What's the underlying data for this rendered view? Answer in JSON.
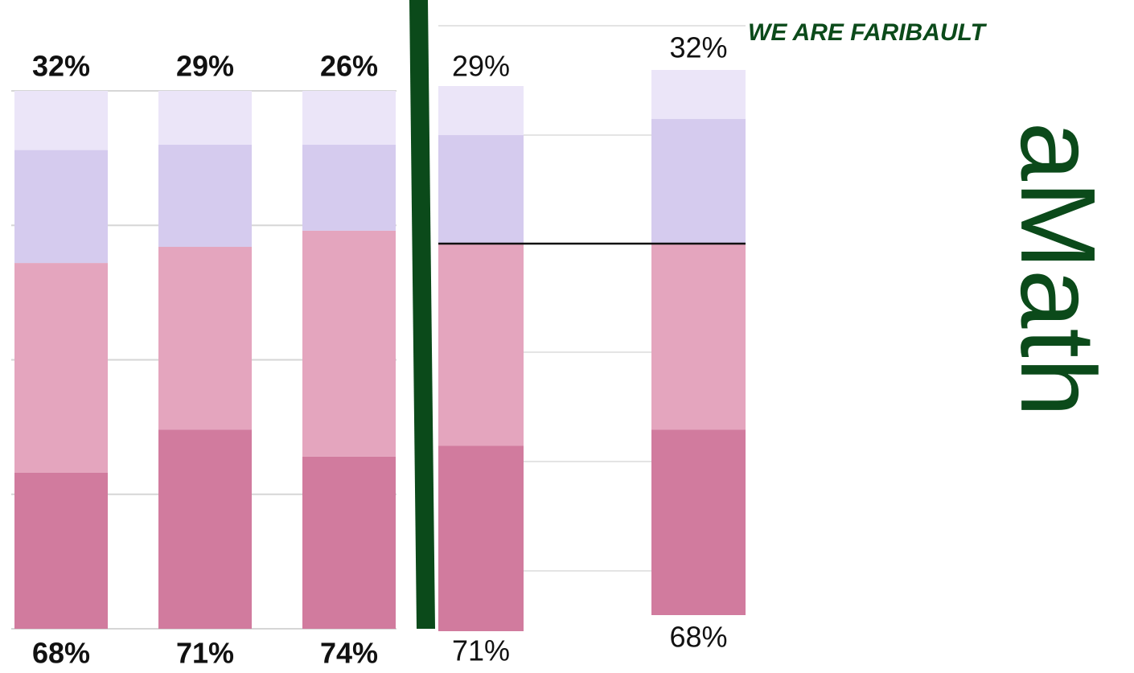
{
  "header": {
    "tagline": "WE ARE FARIBAULT",
    "subject": "aMath"
  },
  "chart_data": [
    {
      "type": "stacked_bar",
      "series": [
        {
          "color": "#d17b9e",
          "values": [
            29,
            37,
            32
          ]
        },
        {
          "color": "#e4a5be",
          "values": [
            39,
            34,
            42
          ]
        },
        {
          "color": "#d5cbee",
          "values": [
            21,
            19,
            16
          ]
        },
        {
          "color": "#ebe5f8",
          "values": [
            11,
            10,
            10
          ]
        }
      ],
      "top_labels": [
        "32%",
        "29%",
        "26%"
      ],
      "bottom_labels": [
        "68%",
        "71%",
        "74%"
      ],
      "ylim": [
        0,
        100
      ],
      "yticks": [
        0,
        25,
        50,
        75,
        100
      ],
      "grid": true
    },
    {
      "type": "stacked_bar",
      "series": [
        {
          "color": "#d17b9e",
          "values": [
            34,
            34
          ]
        },
        {
          "color": "#e4a5be",
          "values": [
            37,
            34
          ]
        },
        {
          "color": "#d5cbee",
          "values": [
            20,
            23
          ]
        },
        {
          "color": "#ebe5f8",
          "values": [
            9,
            9
          ]
        }
      ],
      "top_labels": [
        "29%",
        "32%"
      ],
      "bottom_labels": [
        "71%",
        "68%"
      ],
      "ylim": [
        0,
        100
      ]
    }
  ]
}
